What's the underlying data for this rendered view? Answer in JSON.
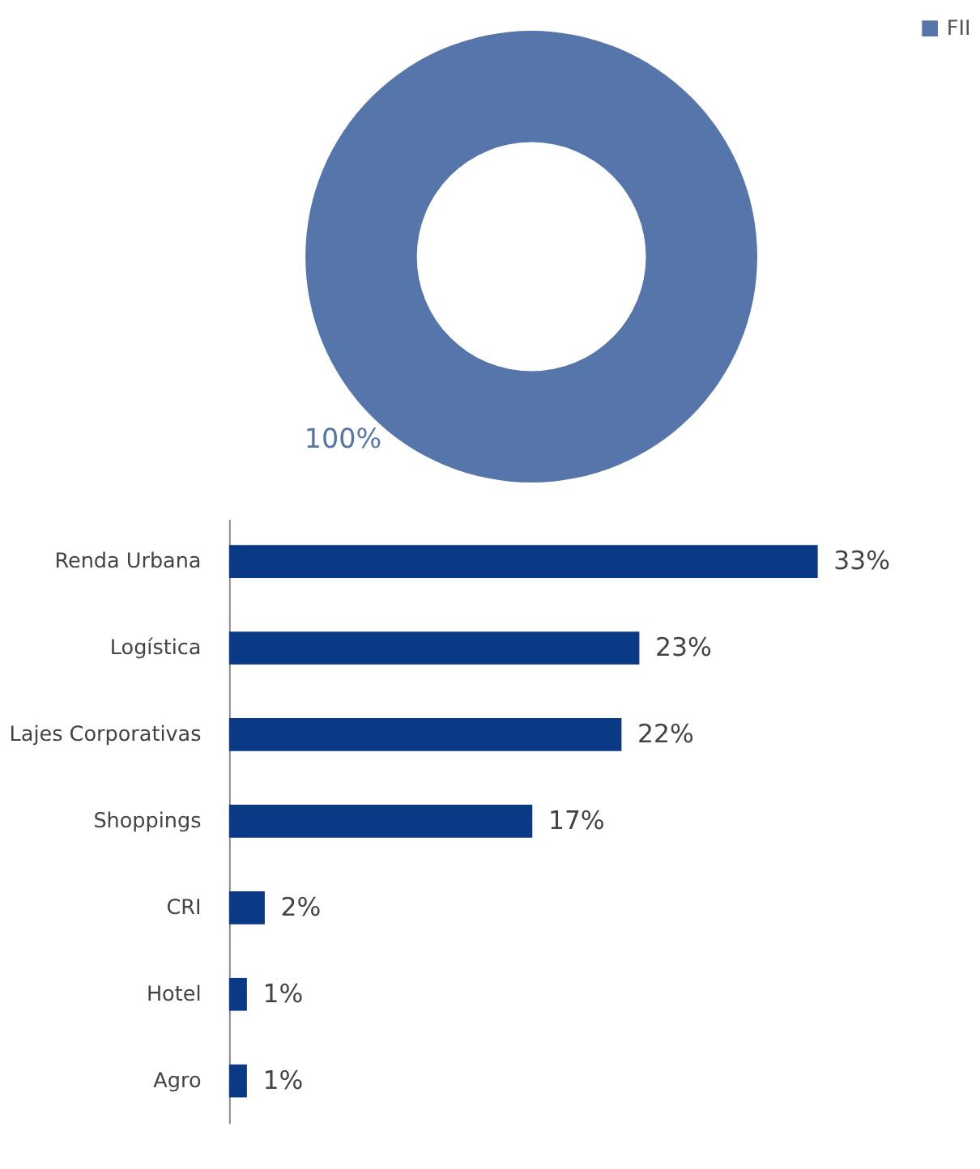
{
  "chart_data": [
    {
      "type": "donut",
      "categories": [
        "FII"
      ],
      "values": [
        100
      ],
      "value_labels": [
        "100%"
      ],
      "colors": [
        "#5575ab"
      ],
      "legend": "right"
    },
    {
      "type": "bar",
      "orientation": "horizontal",
      "categories": [
        "Renda Urbana",
        "Logística",
        "Lajes Corporativas",
        "Shoppings",
        "CRI",
        "Hotel",
        "Agro"
      ],
      "values": [
        33,
        23,
        22,
        17,
        2,
        1,
        1
      ],
      "value_labels": [
        "33%",
        "23%",
        "22%",
        "17%",
        "2%",
        "1%",
        "1%"
      ],
      "color": "#0a3a85"
    }
  ]
}
